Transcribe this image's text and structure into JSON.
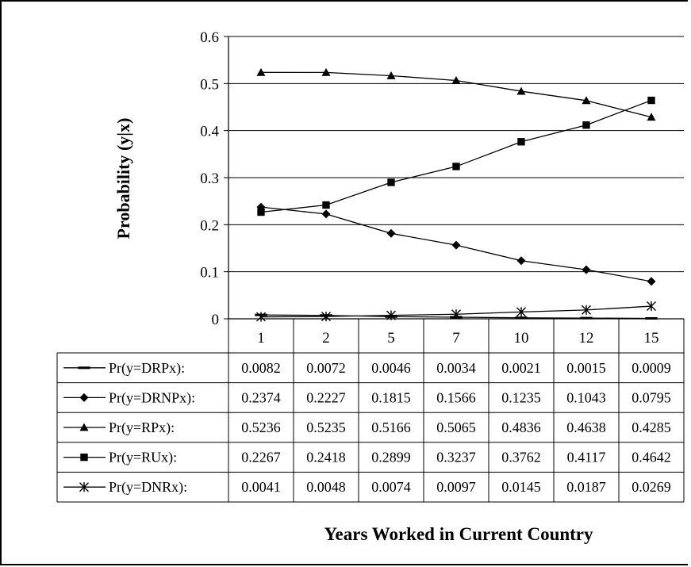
{
  "chart_data": {
    "type": "line",
    "title": "",
    "ylabel": "Probability (y|x)",
    "xlabel": "Years Worked in Current Country",
    "ylim": [
      0,
      0.6
    ],
    "y_ticks": [
      "0",
      "0.1",
      "0.2",
      "0.3",
      "0.4",
      "0.5",
      "0.6"
    ],
    "grid": true,
    "legend": "data-table",
    "categories": [
      "1",
      "2",
      "5",
      "7",
      "10",
      "12",
      "15"
    ],
    "series": [
      {
        "name": "Pr(y=DRPx):",
        "marker": "dash",
        "values": [
          0.0082,
          0.0072,
          0.0046,
          0.0034,
          0.0021,
          0.0015,
          0.0009
        ],
        "labels": [
          "0.0082",
          "0.0072",
          "0.0046",
          "0.0034",
          "0.0021",
          "0.0015",
          "0.0009"
        ]
      },
      {
        "name": "Pr(y=DRNPx):",
        "marker": "diamond",
        "values": [
          0.2374,
          0.2227,
          0.1815,
          0.1566,
          0.1235,
          0.1043,
          0.0795
        ],
        "labels": [
          "0.2374",
          "0.2227",
          "0.1815",
          "0.1566",
          "0.1235",
          "0.1043",
          "0.0795"
        ]
      },
      {
        "name": "Pr(y=RPx):",
        "marker": "triangle",
        "values": [
          0.5236,
          0.5235,
          0.5166,
          0.5065,
          0.4836,
          0.4638,
          0.4285
        ],
        "labels": [
          "0.5236",
          "0.5235",
          "0.5166",
          "0.5065",
          "0.4836",
          "0.4638",
          "0.4285"
        ]
      },
      {
        "name": "Pr(y=RUx):",
        "marker": "square",
        "values": [
          0.2267,
          0.2418,
          0.2899,
          0.3237,
          0.3762,
          0.4117,
          0.4642
        ],
        "labels": [
          "0.2267",
          "0.2418",
          "0.2899",
          "0.3237",
          "0.3762",
          "0.4117",
          "0.4642"
        ]
      },
      {
        "name": "Pr(y=DNRx):",
        "marker": "asterisk",
        "values": [
          0.0041,
          0.0048,
          0.0074,
          0.0097,
          0.0145,
          0.0187,
          0.0269
        ],
        "labels": [
          "0.0041",
          "0.0048",
          "0.0074",
          "0.0097",
          "0.0145",
          "0.0187",
          "0.0269"
        ]
      }
    ]
  }
}
